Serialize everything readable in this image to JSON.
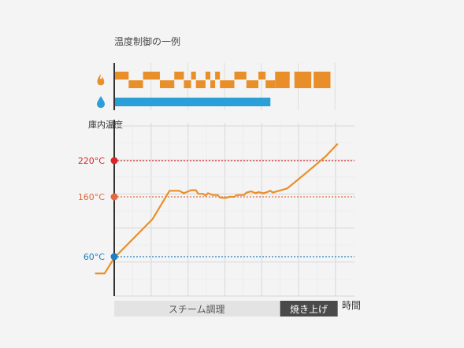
{
  "title": "温度制御の一例",
  "icons": {
    "heat": {
      "name": "flame-icon",
      "color": "#e98f2a"
    },
    "steam": {
      "name": "water-drop-icon",
      "color": "#2a9fd8"
    }
  },
  "chart_data": {
    "type": "line",
    "title": "温度制御の一例",
    "ylabel": "庫内温度",
    "xlabel": "時間",
    "grid": true,
    "phases": [
      {
        "label": "スチーム調理",
        "start": 0,
        "end": 0.69
      },
      {
        "label": "焼き上げ",
        "start": 0.69,
        "end": 0.93
      }
    ],
    "reference_lines": [
      {
        "label": "220°C",
        "value": 220,
        "color": "#d8262b"
      },
      {
        "label": "160°C",
        "value": 160,
        "color": "#e0693f"
      },
      {
        "label": "60°C",
        "value": 60,
        "color": "#1e7ec3"
      }
    ],
    "series": [
      {
        "color": "#e98f2a",
        "points": [
          [
            -0.08,
            32
          ],
          [
            -0.04,
            32
          ],
          [
            0.0,
            58
          ],
          [
            0.16,
            123
          ],
          [
            0.23,
            170
          ],
          [
            0.27,
            170
          ],
          [
            0.29,
            166
          ],
          [
            0.32,
            171
          ],
          [
            0.34,
            171
          ],
          [
            0.35,
            165
          ],
          [
            0.37,
            165
          ],
          [
            0.38,
            162
          ],
          [
            0.39,
            166
          ],
          [
            0.41,
            163
          ],
          [
            0.43,
            163
          ],
          [
            0.44,
            159
          ],
          [
            0.46,
            158
          ],
          [
            0.48,
            160
          ],
          [
            0.5,
            160
          ],
          [
            0.51,
            163
          ],
          [
            0.54,
            163
          ],
          [
            0.55,
            167
          ],
          [
            0.57,
            169
          ],
          [
            0.59,
            166
          ],
          [
            0.6,
            168
          ],
          [
            0.62,
            166
          ],
          [
            0.63,
            167
          ],
          [
            0.65,
            170
          ],
          [
            0.66,
            167
          ],
          [
            0.72,
            174
          ],
          [
            0.8,
            200
          ],
          [
            0.88,
            227
          ],
          [
            0.93,
            248
          ]
        ]
      }
    ],
    "heat_on_intervals": [
      [
        0.0,
        0.06
      ],
      [
        0.12,
        0.19
      ],
      [
        0.25,
        0.29
      ],
      [
        0.32,
        0.34
      ],
      [
        0.38,
        0.4
      ],
      [
        0.42,
        0.44
      ],
      [
        0.5,
        0.55
      ],
      [
        0.6,
        0.63
      ],
      [
        0.67,
        0.73
      ],
      [
        0.75,
        0.82
      ],
      [
        0.83,
        0.9
      ]
    ],
    "heat_off_intervals": [
      [
        0.06,
        0.12
      ],
      [
        0.19,
        0.25
      ],
      [
        0.29,
        0.32
      ],
      [
        0.34,
        0.38
      ],
      [
        0.4,
        0.42
      ],
      [
        0.44,
        0.5
      ],
      [
        0.55,
        0.6
      ],
      [
        0.63,
        0.67
      ]
    ],
    "steam_on_intervals": [
      [
        0.0,
        0.65
      ]
    ]
  }
}
